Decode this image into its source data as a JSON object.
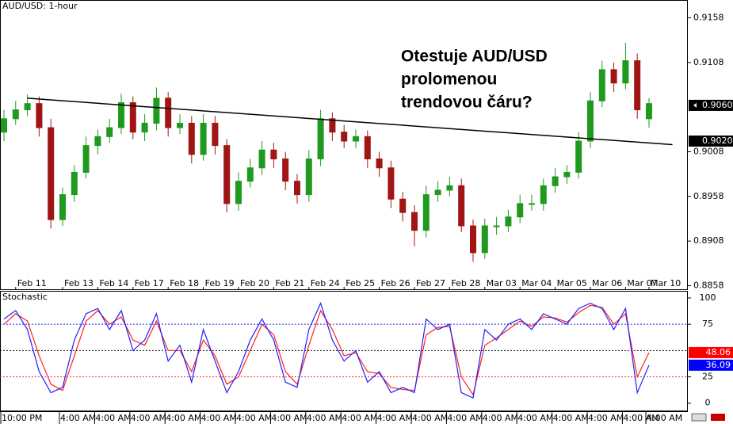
{
  "chart_data": [
    {
      "type": "candlestick",
      "title": "AUD/USD: 1-hour",
      "annotation": [
        "Otestuje AUD/USD",
        "prolomenou",
        "trendovou čáru?"
      ],
      "categories": [
        null,
        "Feb 11",
        null,
        null,
        null,
        "Feb 13",
        null,
        null,
        "Feb 14",
        null,
        null,
        "Feb 17",
        null,
        null,
        "Feb 18",
        null,
        null,
        "Feb 19",
        null,
        null,
        "Feb 20",
        null,
        null,
        "Feb 21",
        null,
        null,
        "Feb 24",
        null,
        null,
        "Feb 25",
        null,
        null,
        "Feb 26",
        null,
        null,
        "Feb 27",
        null,
        null,
        "Feb 28",
        null,
        null,
        "Mar 03",
        null,
        null,
        "Mar 04",
        null,
        null,
        "Mar 05",
        null,
        null,
        "Mar 06",
        null,
        null,
        "Mar 07",
        null,
        "Mar 10"
      ],
      "open": [
        0.903,
        0.9045,
        0.9055,
        0.9062,
        0.9035,
        0.8932,
        0.896,
        0.8985,
        0.9015,
        0.9025,
        0.9035,
        0.9063,
        0.903,
        0.904,
        0.9068,
        0.9035,
        0.904,
        0.9005,
        0.904,
        0.9015,
        0.895,
        0.8975,
        0.899,
        0.901,
        0.9,
        0.8975,
        0.896,
        0.9,
        0.9045,
        0.903,
        0.902,
        0.9025,
        0.9,
        0.899,
        0.8955,
        0.894,
        0.892,
        0.896,
        0.8965,
        0.897,
        0.8925,
        0.8895,
        0.8925,
        0.8925,
        0.8935,
        0.895,
        0.895,
        0.897,
        0.898,
        0.8985,
        0.902,
        0.9065,
        0.91,
        0.9085,
        0.911,
        0.9045
      ],
      "high": [
        0.9055,
        0.9065,
        0.9072,
        0.907,
        0.9045,
        0.8968,
        0.8993,
        0.9025,
        0.9033,
        0.9045,
        0.9073,
        0.907,
        0.905,
        0.908,
        0.9075,
        0.905,
        0.9048,
        0.905,
        0.9048,
        0.9022,
        0.8985,
        0.9,
        0.902,
        0.9018,
        0.9008,
        0.8983,
        0.901,
        0.9055,
        0.9052,
        0.9038,
        0.9033,
        0.9032,
        0.9008,
        0.8998,
        0.8963,
        0.8948,
        0.897,
        0.8975,
        0.898,
        0.8978,
        0.8932,
        0.8933,
        0.8935,
        0.8943,
        0.896,
        0.896,
        0.8978,
        0.899,
        0.8993,
        0.903,
        0.9075,
        0.911,
        0.9108,
        0.913,
        0.9118,
        0.9068
      ],
      "low": [
        0.902,
        0.9038,
        0.9048,
        0.9025,
        0.8922,
        0.8925,
        0.8952,
        0.8978,
        0.9005,
        0.9018,
        0.9028,
        0.9022,
        0.902,
        0.9032,
        0.9025,
        0.9028,
        0.8995,
        0.8998,
        0.9005,
        0.894,
        0.8942,
        0.8968,
        0.8982,
        0.899,
        0.8965,
        0.895,
        0.8952,
        0.8992,
        0.902,
        0.9012,
        0.9012,
        0.899,
        0.898,
        0.8945,
        0.893,
        0.8902,
        0.8912,
        0.8952,
        0.8958,
        0.8918,
        0.8885,
        0.8888,
        0.8915,
        0.8918,
        0.8928,
        0.8942,
        0.8942,
        0.8962,
        0.8972,
        0.8978,
        0.9012,
        0.9058,
        0.9075,
        0.9078,
        0.9045,
        0.9035
      ],
      "close": [
        0.9045,
        0.9055,
        0.9062,
        0.9035,
        0.8932,
        0.896,
        0.8985,
        0.9015,
        0.9025,
        0.9035,
        0.9063,
        0.903,
        0.904,
        0.9068,
        0.9035,
        0.904,
        0.9005,
        0.904,
        0.9015,
        0.895,
        0.8975,
        0.899,
        0.901,
        0.9,
        0.8975,
        0.896,
        0.9,
        0.9045,
        0.903,
        0.902,
        0.9025,
        0.9,
        0.899,
        0.8955,
        0.894,
        0.892,
        0.896,
        0.8965,
        0.897,
        0.8925,
        0.8895,
        0.8925,
        0.8925,
        0.8935,
        0.895,
        0.895,
        0.897,
        0.898,
        0.8985,
        0.902,
        0.9065,
        0.91,
        0.9085,
        0.911,
        0.9055,
        0.9062
      ],
      "up_color": "#1f9a1f",
      "down_color": "#a01515",
      "ylim": [
        0.8854,
        0.9178
      ],
      "yticks": [
        0.9158,
        0.9108,
        0.9008,
        0.8958,
        0.8908,
        0.8858
      ],
      "price_markers": [
        {
          "value": 0.906,
          "label": "0.9060"
        },
        {
          "value": 0.902,
          "label": "0.9020"
        }
      ],
      "trendline": {
        "x": [
          2,
          57
        ],
        "y": [
          0.9068,
          0.9016
        ]
      }
    },
    {
      "type": "line",
      "title": "Stochastic",
      "categories": [
        "10:00 PM",
        null,
        null,
        null,
        null,
        "4:00 AM",
        null,
        null,
        "4:00 AM",
        null,
        null,
        "4:00 AM",
        null,
        null,
        "4:00 AM",
        null,
        null,
        "4:00 AM",
        null,
        null,
        "4:00 AM",
        null,
        null,
        "4:00 AM",
        null,
        null,
        "4:00 AM",
        null,
        null,
        "4:00 AM",
        null,
        null,
        "4:00 AM",
        null,
        null,
        "4:00 AM",
        null,
        null,
        "4:00 AM",
        null,
        null,
        "4:00 AM",
        null,
        null,
        "4:00 AM",
        null,
        null,
        "4:00 AM",
        null,
        null,
        "4:00 AM",
        null,
        null,
        "4:00 AM",
        null,
        "4:00 AM"
      ],
      "series": [
        {
          "color": "#ff2020",
          "values": [
            75,
            85,
            78,
            45,
            18,
            12,
            45,
            78,
            88,
            75,
            82,
            60,
            55,
            78,
            50,
            50,
            30,
            60,
            45,
            18,
            25,
            50,
            75,
            65,
            30,
            18,
            55,
            88,
            70,
            45,
            48,
            30,
            28,
            15,
            13,
            12,
            65,
            72,
            73,
            25,
            8,
            55,
            62,
            70,
            78,
            73,
            82,
            81,
            77,
            86,
            93,
            91,
            75,
            85,
            25,
            48.06
          ]
        },
        {
          "color": "#2020ff",
          "values": [
            80,
            88,
            70,
            30,
            10,
            15,
            60,
            85,
            90,
            70,
            88,
            50,
            60,
            85,
            40,
            55,
            20,
            70,
            40,
            10,
            30,
            60,
            80,
            60,
            20,
            15,
            70,
            95,
            60,
            40,
            50,
            20,
            30,
            10,
            15,
            10,
            80,
            70,
            75,
            10,
            5,
            70,
            60,
            75,
            80,
            70,
            85,
            80,
            75,
            90,
            95,
            90,
            70,
            90,
            10,
            36.09
          ]
        }
      ],
      "ylim": [
        -7,
        106
      ],
      "yticks": [
        0,
        25,
        75,
        100
      ],
      "levels": [
        {
          "value": 75,
          "color": "#2020ff"
        },
        {
          "value": 50,
          "color": "#000000"
        },
        {
          "value": 25,
          "color": "#ff2020"
        }
      ],
      "value_markers": [
        {
          "value": 48.06,
          "color": "#ff0000"
        },
        {
          "value": 36.09,
          "color": "#0000ff"
        }
      ]
    }
  ]
}
